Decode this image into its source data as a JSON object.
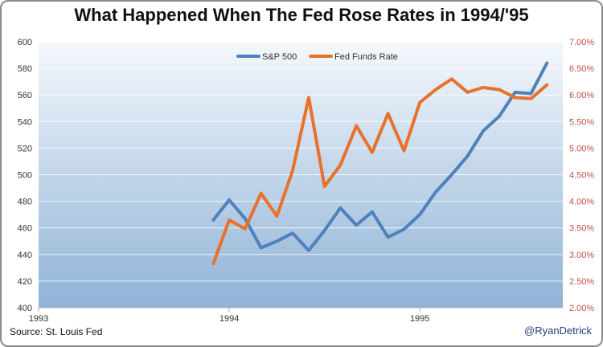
{
  "title": "What Happened When The Fed Rose Rates in 1994/'95",
  "source": "Source:  St. Louis Fed",
  "handle": "@RyanDetrick",
  "colors": {
    "sp500": "#4f81bd",
    "fed": "#e8722c",
    "right_axis_text": "#c0504d"
  },
  "chart_data": {
    "type": "line",
    "title": "What Happened When The Fed Rose Rates in 1994/'95",
    "x_ticks": [
      "1993",
      "1994",
      "1995"
    ],
    "x_range": [
      1993.0,
      1995.75
    ],
    "y_left": {
      "ticks": [
        "400",
        "420",
        "440",
        "460",
        "480",
        "500",
        "520",
        "540",
        "560",
        "580",
        "600"
      ],
      "range": [
        400,
        600
      ]
    },
    "y_right": {
      "ticks": [
        "2.00%",
        "2.50%",
        "3.00%",
        "3.50%",
        "4.00%",
        "4.50%",
        "5.00%",
        "5.50%",
        "6.00%",
        "6.50%",
        "7.00%"
      ],
      "range": [
        2.0,
        7.0
      ]
    },
    "grid": "horizontal",
    "legend_position": "top-center",
    "series": [
      {
        "name": "S&P 500",
        "axis": "left",
        "x": [
          1993.917,
          1994.0,
          1994.083,
          1994.167,
          1994.25,
          1994.333,
          1994.417,
          1994.5,
          1994.583,
          1994.667,
          1994.75,
          1994.833,
          1994.917,
          1995.0,
          1995.083,
          1995.167,
          1995.25,
          1995.333,
          1995.417,
          1995.5,
          1995.583,
          1995.667
        ],
        "values": [
          466,
          481,
          467,
          445,
          450,
          456,
          443,
          458,
          475,
          462,
          472,
          453,
          459,
          470,
          487,
          500,
          514,
          533,
          544,
          562,
          561,
          584
        ]
      },
      {
        "name": "Fed Funds Rate",
        "axis": "right",
        "x": [
          1993.917,
          1994.0,
          1994.083,
          1994.167,
          1994.25,
          1994.333,
          1994.417,
          1994.5,
          1994.583,
          1994.667,
          1994.75,
          1994.833,
          1994.917,
          1995.0,
          1995.083,
          1995.167,
          1995.25,
          1995.333,
          1995.417,
          1995.5,
          1995.583,
          1995.667
        ],
        "values": [
          2.83,
          3.65,
          3.48,
          4.15,
          3.72,
          4.58,
          5.95,
          4.28,
          4.68,
          5.42,
          4.92,
          5.65,
          4.95,
          5.86,
          6.1,
          6.3,
          6.05,
          6.14,
          6.1,
          5.95,
          5.93,
          6.19
        ]
      }
    ]
  }
}
